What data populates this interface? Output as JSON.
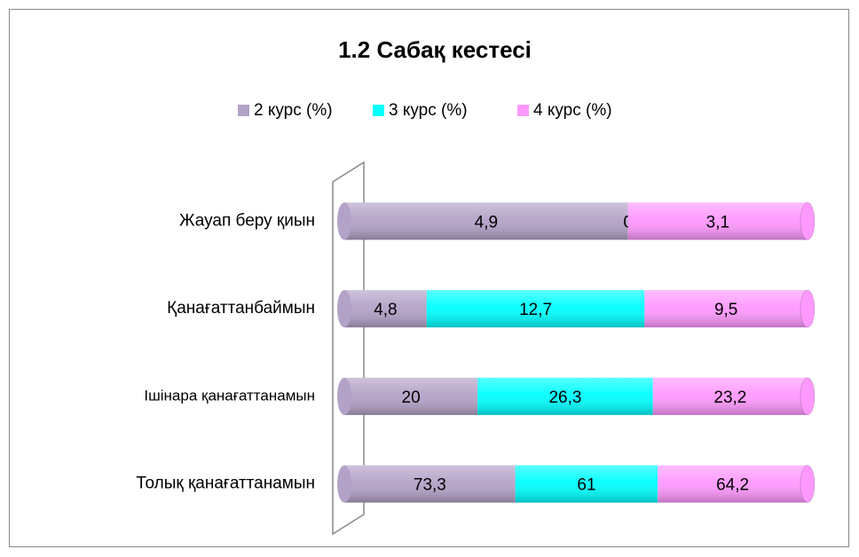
{
  "chart_data": {
    "type": "bar",
    "orientation": "horizontal",
    "stacked": "percent",
    "title": "1.2 Сабақ кестесі",
    "categories": [
      "Жауап беру қиын",
      "Қанағаттанбаймын",
      "Ішінара қанағаттанамын",
      "Толық қанағаттанамын"
    ],
    "series": [
      {
        "name": "2 курс (%)",
        "color": "#b3a2c7",
        "values": [
          4.9,
          4.8,
          20,
          73.3
        ],
        "value_labels": [
          "4,9",
          "4,8",
          "20",
          "73,3"
        ]
      },
      {
        "name": "3 курс (%)",
        "color": "#00ffff",
        "values": [
          0,
          12.7,
          26.3,
          61
        ],
        "value_labels": [
          "0",
          "12,7",
          "26,3",
          "61"
        ]
      },
      {
        "name": "4 курс (%)",
        "color": "#ff99ff",
        "values": [
          3.1,
          9.5,
          23.2,
          64.2
        ],
        "value_labels": [
          "3,1",
          "9,5",
          "23,2",
          "64,2"
        ]
      }
    ],
    "legend": "top"
  }
}
